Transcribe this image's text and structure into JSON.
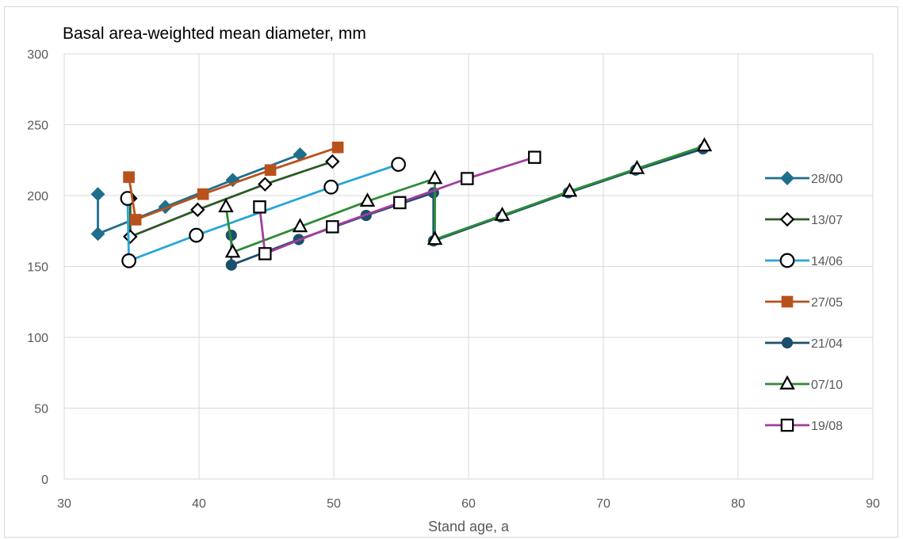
{
  "chart_data": {
    "type": "scatter",
    "title": "Basal area-weighted mean diameter, mm",
    "xlabel": "Stand age, a",
    "ylabel": "",
    "xlim": [
      30,
      90
    ],
    "ylim": [
      0,
      300
    ],
    "xticks": [
      30,
      40,
      50,
      60,
      70,
      80,
      90
    ],
    "yticks": [
      0,
      50,
      100,
      150,
      200,
      250,
      300
    ],
    "grid": "horizontal",
    "legend_position": "right",
    "series": [
      {
        "name": "28/00",
        "color": "#1f6e8c",
        "marker": "diamond-filled",
        "points": [
          [
            32.5,
            201
          ],
          [
            32.5,
            173
          ],
          [
            37.5,
            192
          ],
          [
            42.5,
            211
          ],
          [
            47.5,
            229
          ]
        ]
      },
      {
        "name": "13/07",
        "color": "#2d5a27",
        "marker": "diamond-open",
        "points": [
          [
            34.9,
            198
          ],
          [
            34.9,
            171
          ],
          [
            39.9,
            190
          ],
          [
            44.9,
            208
          ],
          [
            49.9,
            224
          ]
        ]
      },
      {
        "name": "14/06",
        "color": "#2aa5d9",
        "marker": "circle-open",
        "points": [
          [
            34.7,
            198
          ],
          [
            34.8,
            154
          ],
          [
            39.8,
            172
          ],
          [
            49.8,
            206
          ],
          [
            54.8,
            222
          ]
        ]
      },
      {
        "name": "27/05",
        "color": "#b8521c",
        "marker": "square-filled",
        "points": [
          [
            34.8,
            213
          ],
          [
            35.3,
            183
          ],
          [
            40.3,
            201
          ],
          [
            45.3,
            218
          ],
          [
            50.3,
            234
          ]
        ]
      },
      {
        "name": "21/04",
        "color": "#1b4f6b",
        "marker": "circle-filled",
        "points": [
          [
            42.4,
            172
          ],
          [
            42.4,
            151
          ],
          [
            47.4,
            169
          ],
          [
            52.4,
            186
          ],
          [
            57.4,
            202
          ],
          [
            57.4,
            168
          ],
          [
            62.4,
            185
          ],
          [
            67.4,
            202
          ],
          [
            72.4,
            218
          ],
          [
            77.4,
            233
          ]
        ]
      },
      {
        "name": "07/10",
        "color": "#2e8b37",
        "marker": "triangle-open",
        "points": [
          [
            42.0,
            192
          ],
          [
            42.5,
            160
          ],
          [
            47.5,
            178
          ],
          [
            52.5,
            196
          ],
          [
            57.5,
            212
          ],
          [
            57.5,
            169
          ],
          [
            62.5,
            186
          ],
          [
            67.5,
            203
          ],
          [
            72.5,
            219
          ],
          [
            77.5,
            235
          ]
        ]
      },
      {
        "name": "19/08",
        "color": "#a13e9e",
        "marker": "square-open",
        "points": [
          [
            44.5,
            192
          ],
          [
            44.9,
            159
          ],
          [
            49.9,
            178
          ],
          [
            54.9,
            195
          ],
          [
            59.9,
            212
          ],
          [
            64.9,
            227
          ]
        ]
      }
    ]
  }
}
